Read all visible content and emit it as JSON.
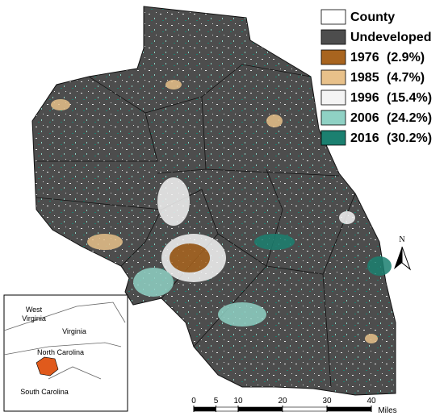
{
  "legend": [
    {
      "label": "County",
      "color": "#ffffff"
    },
    {
      "label": "Undeveloped",
      "color": "#4d4d4d"
    },
    {
      "label": "1976",
      "share": "(2.9%)",
      "color": "#a8641f"
    },
    {
      "label": "1985",
      "share": "(4.7%)",
      "color": "#e8c18a"
    },
    {
      "label": "1996",
      "share": "(15.4%)",
      "color": "#f4f4f4"
    },
    {
      "label": "2006",
      "share": "(24.2%)",
      "color": "#8fd1c4"
    },
    {
      "label": "2016",
      "share": "(30.2%)",
      "color": "#1b8070"
    }
  ],
  "north_arrow": "N",
  "scale_bar": {
    "ticks": [
      0,
      5,
      10,
      20,
      30,
      40
    ],
    "unit": "Miles"
  },
  "inset": {
    "labels": [
      {
        "lines": [
          "West",
          "Virginia"
        ]
      },
      {
        "lines": [
          "Virginia"
        ]
      },
      {
        "lines": [
          "North Carolina"
        ]
      },
      {
        "lines": [
          "South Carolina"
        ]
      }
    ]
  }
}
